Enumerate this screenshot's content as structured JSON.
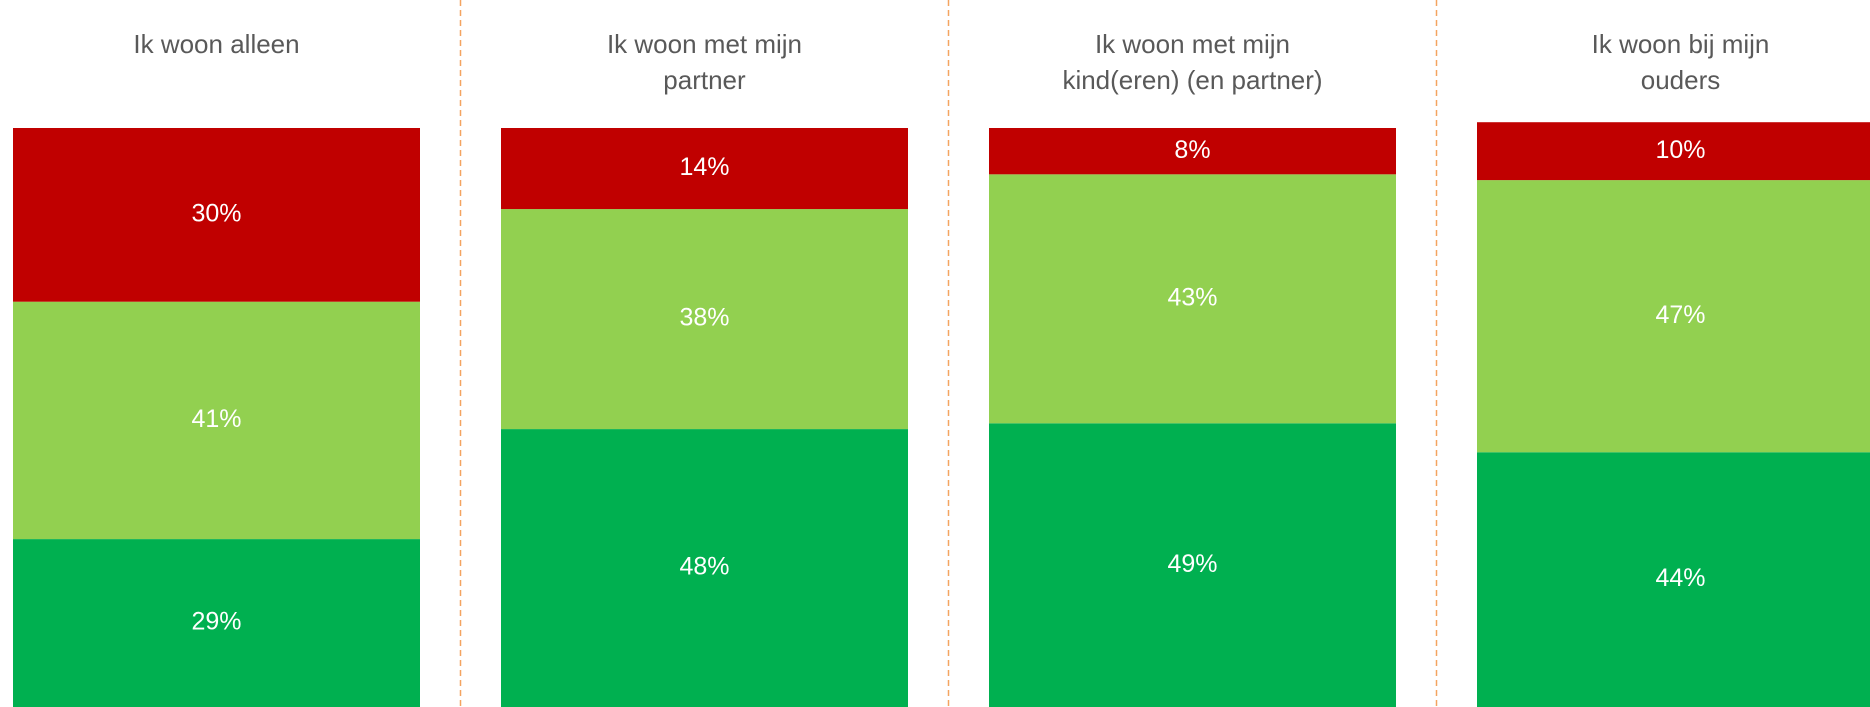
{
  "chart_data": {
    "type": "stacked_bar",
    "categories": [
      "Ik woon alleen",
      "Ik woon met mijn\npartner",
      "Ik woon met mijn\nkind(eren) (en partner)",
      "Ik woon bij mijn\nouders"
    ],
    "series": [
      {
        "color": "#00b050",
        "values": [
          29,
          48,
          49,
          44
        ],
        "value_labels": [
          "29%",
          "48%",
          "49%",
          "44%"
        ]
      },
      {
        "color": "#92d050",
        "values": [
          41,
          38,
          43,
          47
        ],
        "value_labels": [
          "41%",
          "38%",
          "43%",
          "47%"
        ]
      },
      {
        "color": "#c00000",
        "values": [
          30,
          14,
          8,
          10
        ],
        "value_labels": [
          "30%",
          "14%",
          "8%",
          "10%"
        ]
      }
    ],
    "ylim": [
      0,
      100
    ]
  }
}
